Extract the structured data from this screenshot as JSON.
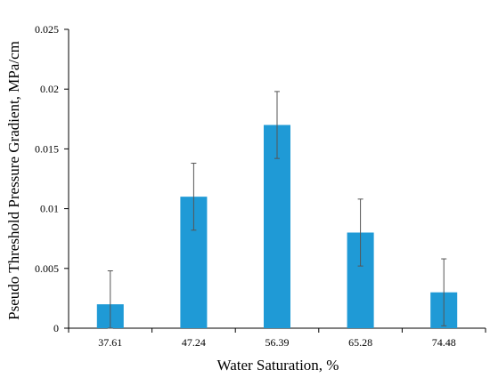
{
  "chart_data": {
    "type": "bar",
    "categories": [
      "37.61",
      "47.24",
      "56.39",
      "65.28",
      "74.48"
    ],
    "values": [
      0.002,
      0.011,
      0.017,
      0.008,
      0.003
    ],
    "error": [
      0.0028,
      0.0028,
      0.0028,
      0.0028,
      0.0028
    ],
    "xlabel": "Water Saturation, %",
    "ylabel": "Pseudo Threshold Pressure Gradient, MPa/cm",
    "ylim": [
      0,
      0.025
    ],
    "yticks": [
      "0",
      "0.005",
      "0.01",
      "0.015",
      "0.02",
      "0.025"
    ],
    "ytick_values": [
      0,
      0.005,
      0.01,
      0.015,
      0.02,
      0.025
    ],
    "bar_color": "#1f9ad6",
    "grid": false,
    "legend": "none"
  }
}
